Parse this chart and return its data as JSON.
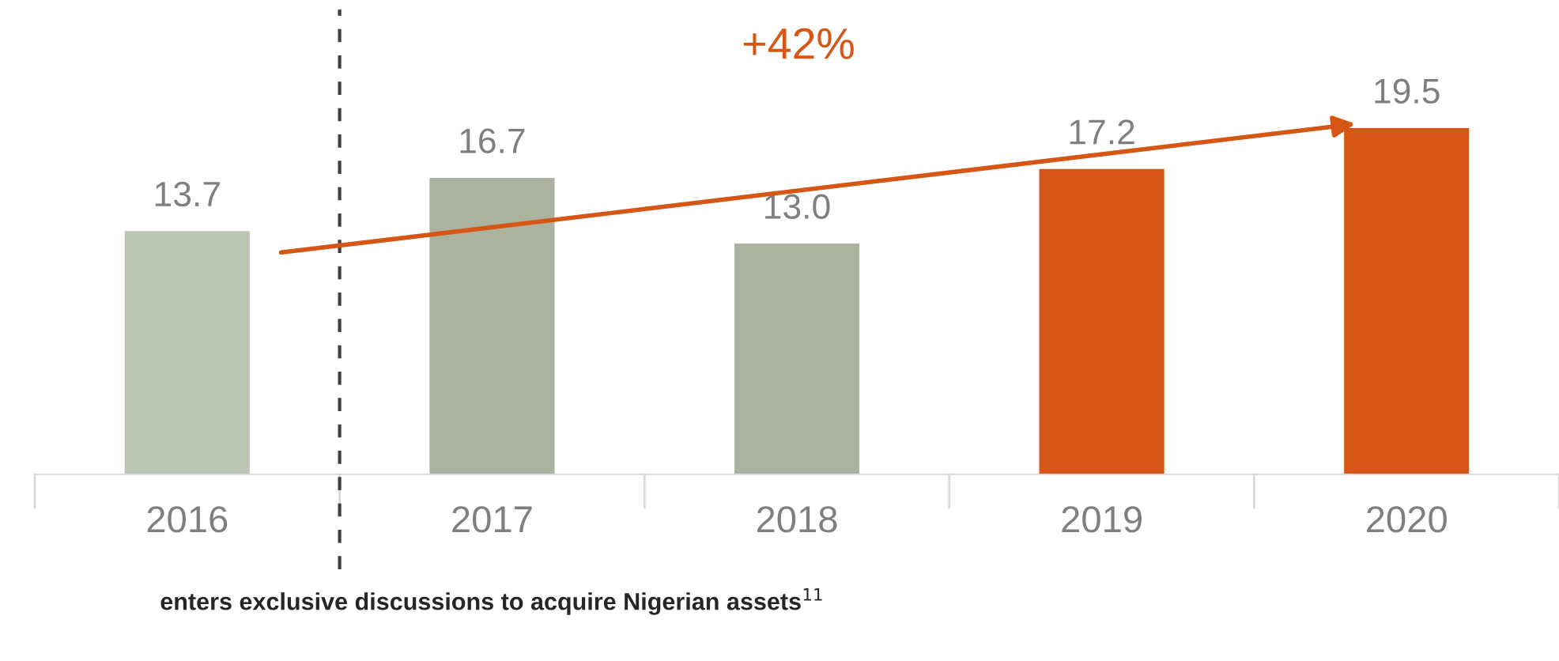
{
  "chart_data": {
    "type": "bar",
    "categories": [
      "2016",
      "2017",
      "2018",
      "2019",
      "2020"
    ],
    "values": [
      13.7,
      16.7,
      13.0,
      17.2,
      19.5
    ],
    "colors": [
      "#bac5b3",
      "#abb3a0",
      "#abb3a0",
      "#d65615",
      "#d65615"
    ],
    "value_labels": [
      "13.7",
      "16.7",
      "13.0",
      "17.2",
      "19.5"
    ],
    "annotations": [
      "+42%",
      "enters exclusive discussions to acquire Nigerian assets$^{11}$"
    ],
    "grid": false,
    "legend": false,
    "tick_labels": "x"
  }
}
